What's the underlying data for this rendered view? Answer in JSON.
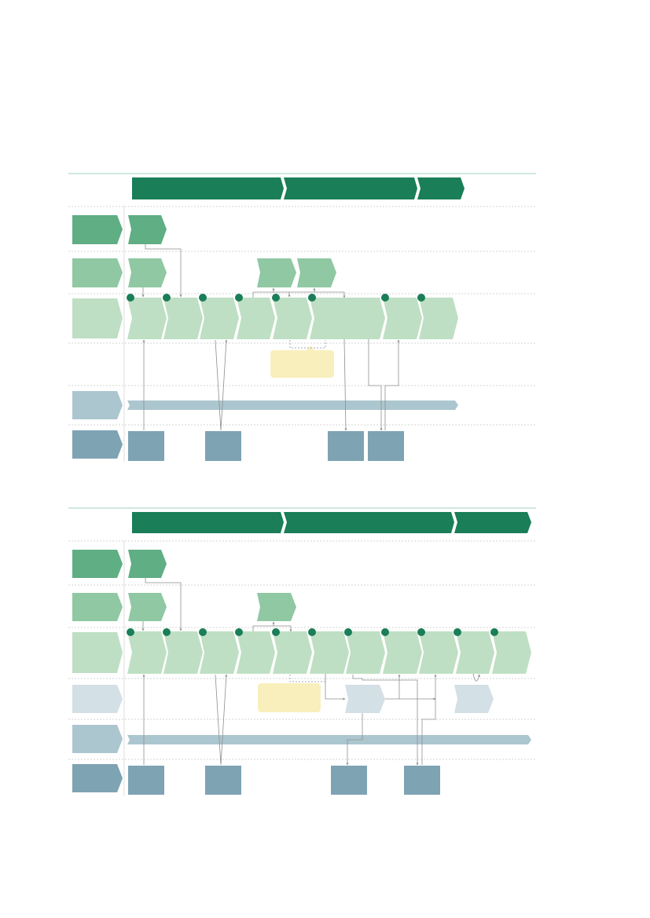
{
  "colors": {
    "phase": "#1a7e58",
    "lane_level1": "#5fae84",
    "lane_level2": "#8fc8a2",
    "lane_level3": "#bedfc3",
    "lane_level4": "#d3e0e5",
    "lane_level5": "#acc6cf",
    "lane_level6": "#7ea3b3",
    "milestone": "#1a7e58",
    "note": "#f8efbc",
    "connector": "#8e8e8e",
    "separator": "#d6d6d6"
  },
  "diagram_a": {
    "phases": [
      "",
      "",
      ""
    ],
    "lanes": [
      "",
      "",
      "",
      "",
      "",
      ""
    ],
    "steps": [
      "",
      "",
      "",
      "",
      "",
      "",
      "",
      ""
    ],
    "note": "",
    "outputs": [
      "",
      "",
      "",
      ""
    ]
  },
  "diagram_b": {
    "phases": [
      "",
      "",
      ""
    ],
    "lanes": [
      "",
      "",
      "",
      "",
      "",
      ""
    ],
    "steps": [
      "",
      "",
      "",
      "",
      "",
      "",
      "",
      "",
      "",
      "",
      ""
    ],
    "note": "",
    "outputs": [
      "",
      "",
      "",
      ""
    ]
  }
}
